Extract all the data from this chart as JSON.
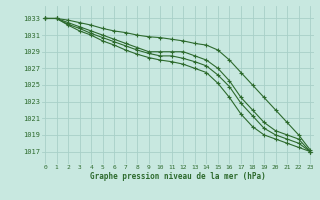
{
  "x": [
    0,
    1,
    2,
    3,
    4,
    5,
    6,
    7,
    8,
    9,
    10,
    11,
    12,
    13,
    14,
    15,
    16,
    17,
    18,
    19,
    20,
    21,
    22,
    23
  ],
  "line1": [
    1033,
    1033,
    1032.8,
    1032.5,
    1032.2,
    1031.8,
    1031.5,
    1031.3,
    1031.0,
    1030.8,
    1030.7,
    1030.5,
    1030.3,
    1030.0,
    1029.8,
    1029.2,
    1028.0,
    1026.5,
    1025.0,
    1023.5,
    1022.0,
    1020.5,
    1019.0,
    1017.2
  ],
  "line2": [
    1033,
    1033,
    1032.5,
    1032.0,
    1031.5,
    1031.0,
    1030.5,
    1030.0,
    1029.5,
    1029.0,
    1029.0,
    1029.0,
    1029.0,
    1028.5,
    1028.0,
    1027.0,
    1025.5,
    1023.5,
    1022.0,
    1020.5,
    1019.5,
    1019.0,
    1018.5,
    1017.0
  ],
  "line3": [
    1033,
    1033,
    1032.3,
    1031.8,
    1031.2,
    1030.7,
    1030.2,
    1029.7,
    1029.2,
    1028.8,
    1028.5,
    1028.5,
    1028.2,
    1027.8,
    1027.3,
    1026.2,
    1024.8,
    1022.8,
    1021.3,
    1019.8,
    1019.0,
    1018.5,
    1018.0,
    1017.0
  ],
  "line4": [
    1033,
    1033,
    1032.2,
    1031.5,
    1031.0,
    1030.3,
    1029.8,
    1029.2,
    1028.7,
    1028.3,
    1028.0,
    1027.8,
    1027.5,
    1027.0,
    1026.5,
    1025.2,
    1023.5,
    1021.5,
    1020.0,
    1019.0,
    1018.5,
    1018.0,
    1017.5,
    1017.0
  ],
  "bg_color": "#c8e8e0",
  "grid_color": "#a8d0c8",
  "line_color": "#2d6a2d",
  "xlabel": "Graphe pression niveau de la mer (hPa)",
  "ylim_min": 1015.5,
  "ylim_max": 1034.5,
  "xlim_min": -0.3,
  "xlim_max": 23.3,
  "yticks": [
    1017,
    1019,
    1021,
    1023,
    1025,
    1027,
    1029,
    1031,
    1033
  ],
  "xticks": [
    0,
    1,
    2,
    3,
    4,
    5,
    6,
    7,
    8,
    9,
    10,
    11,
    12,
    13,
    14,
    15,
    16,
    17,
    18,
    19,
    20,
    21,
    22,
    23
  ]
}
